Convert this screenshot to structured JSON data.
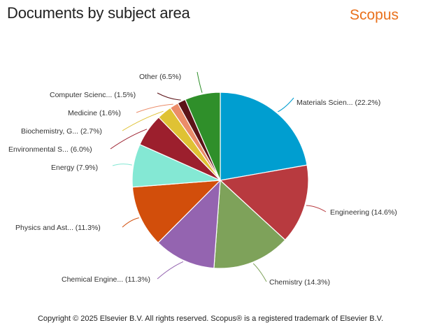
{
  "header": {
    "title": "Documents by subject area",
    "brand": "Scopus"
  },
  "footer": {
    "copyright": "Copyright © 2025 Elsevier B.V. All rights reserved. Scopus® is a registered trademark of Elsevier B.V."
  },
  "chart_data": {
    "type": "pie",
    "title": "Documents by subject area",
    "legend": "none",
    "slices": [
      {
        "label": "Materials Scien...",
        "value": 22.2,
        "display": "Materials Scien... (22.2%)",
        "color": "#009ed0"
      },
      {
        "label": "Engineering",
        "value": 14.6,
        "display": "Engineering (14.6%)",
        "color": "#b83a3f"
      },
      {
        "label": "Chemistry",
        "value": 14.3,
        "display": "Chemistry (14.3%)",
        "color": "#7ea25a"
      },
      {
        "label": "Chemical Engine...",
        "value": 11.3,
        "display": "Chemical Engine... (11.3%)",
        "color": "#9464b0"
      },
      {
        "label": "Physics and Ast...",
        "value": 11.3,
        "display": "Physics and Ast... (11.3%)",
        "color": "#d24e0b"
      },
      {
        "label": "Energy",
        "value": 7.9,
        "display": "Energy (7.9%)",
        "color": "#84e8d4"
      },
      {
        "label": "Environmental S...",
        "value": 6.0,
        "display": "Environmental S... (6.0%)",
        "color": "#9c1f2d"
      },
      {
        "label": "Biochemistry, G...",
        "value": 2.7,
        "display": "Biochemistry, G... (2.7%)",
        "color": "#dfc234"
      },
      {
        "label": "Medicine",
        "value": 1.6,
        "display": "Medicine (1.6%)",
        "color": "#eb8c69"
      },
      {
        "label": "Computer Scienc...",
        "value": 1.5,
        "display": "Computer Scienc... (1.5%)",
        "color": "#5c1318"
      },
      {
        "label": "Other",
        "value": 6.5,
        "display": "Other (6.5%)",
        "color": "#2f8f2a"
      }
    ]
  }
}
